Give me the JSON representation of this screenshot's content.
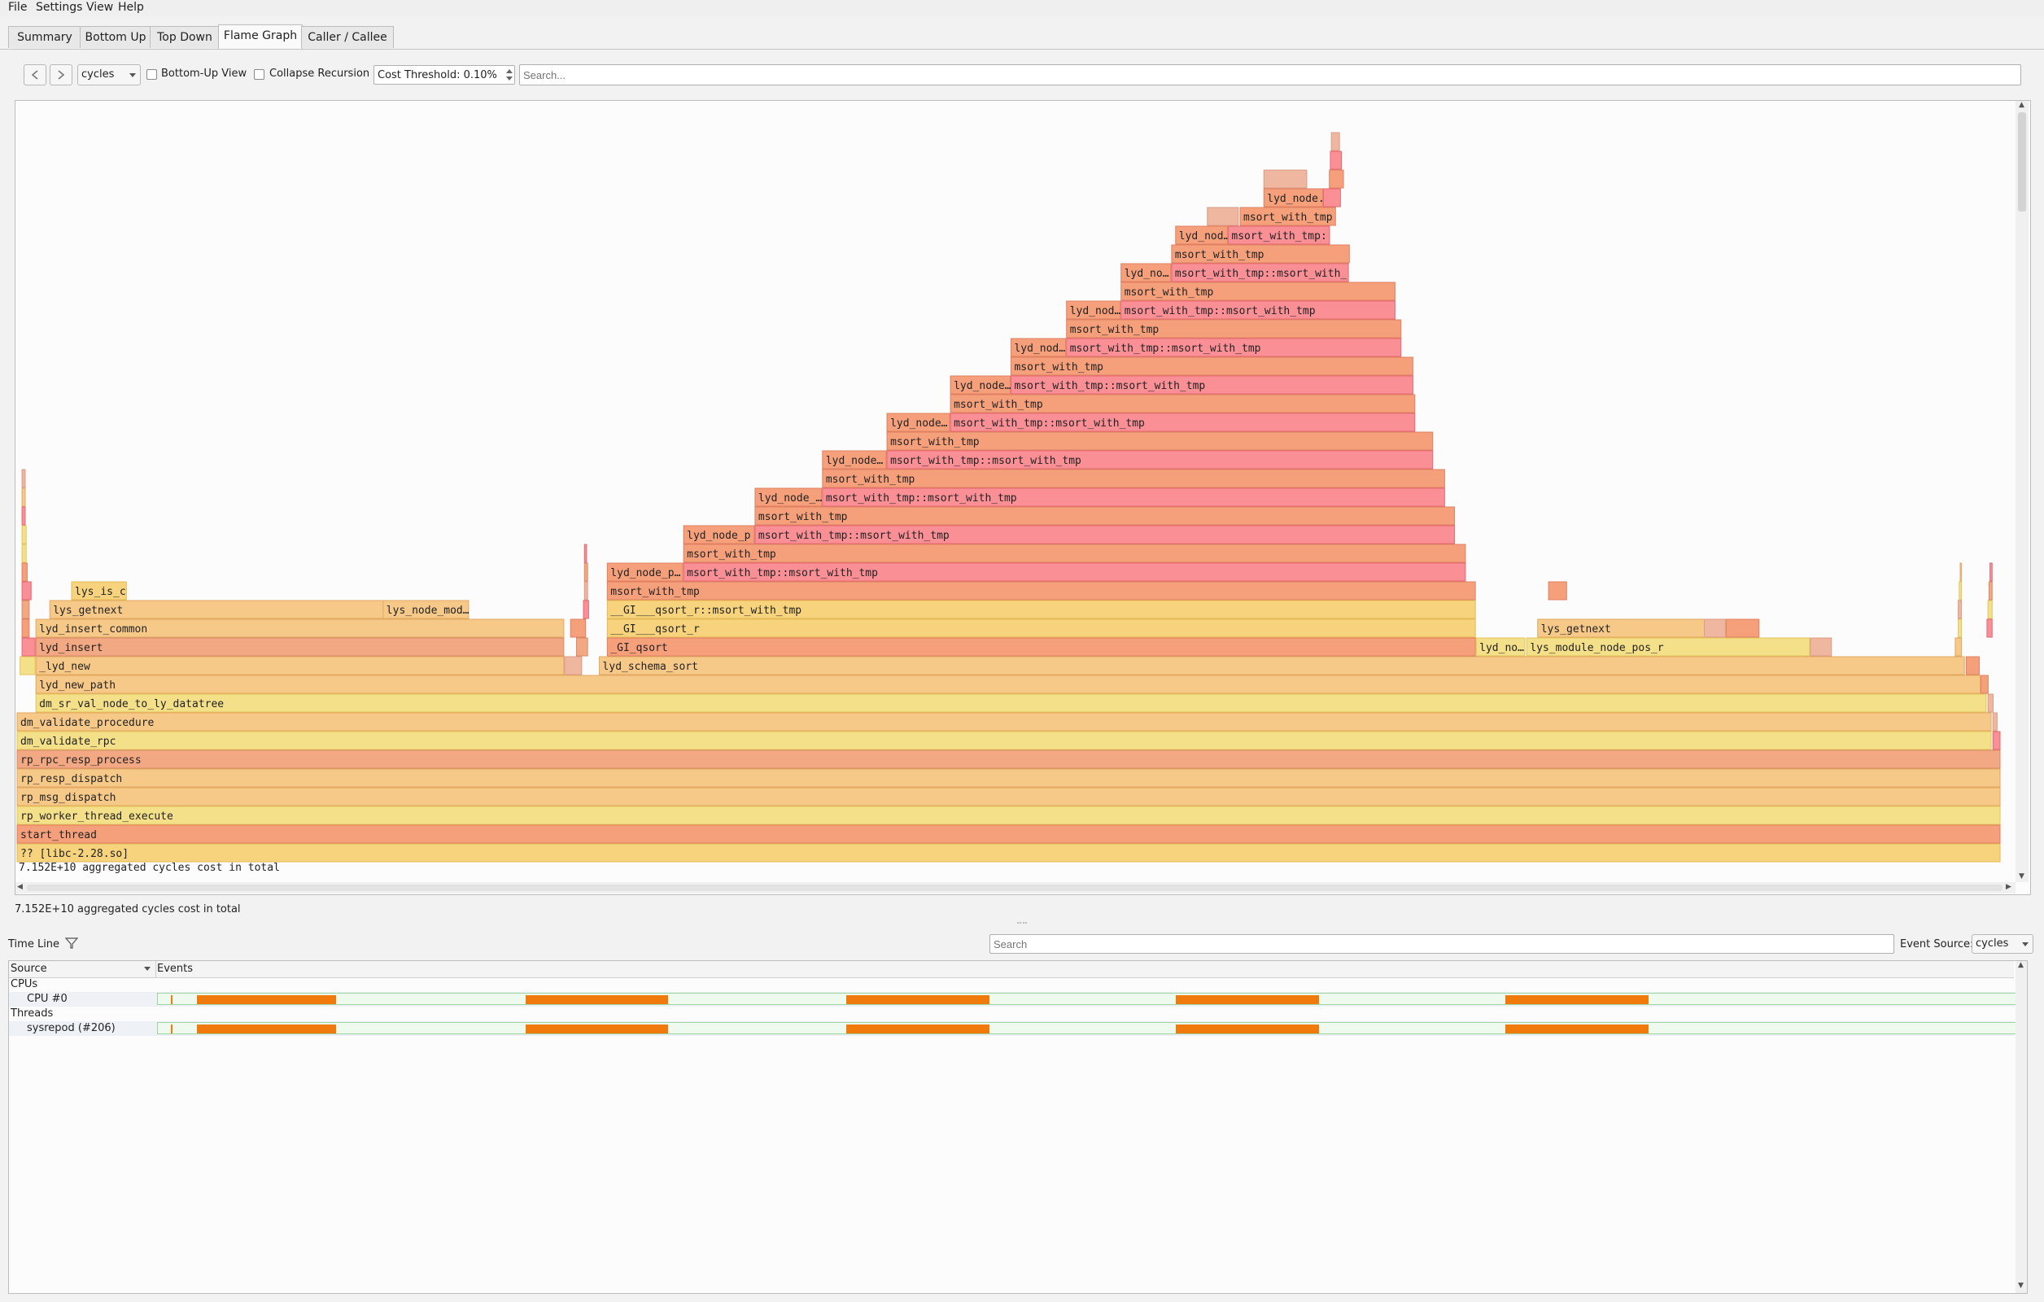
{
  "menu": [
    "File",
    "Settings",
    "View",
    "Help"
  ],
  "tabs": [
    {
      "label": "Summary",
      "active": false
    },
    {
      "label": "Bottom Up",
      "active": false
    },
    {
      "label": "Top Down",
      "active": false
    },
    {
      "label": "Flame Graph",
      "active": true
    },
    {
      "label": "Caller / Callee",
      "active": false
    }
  ],
  "toolbar": {
    "back_icon": "chevron-left-icon",
    "forward_icon": "chevron-right-icon",
    "cost_type": "cycles",
    "bottom_up_label": "Bottom-Up View",
    "bottom_up_checked": false,
    "collapse_label": "Collapse Recursion",
    "collapse_checked": false,
    "threshold_value": "Cost Threshold: 0.10%",
    "search_placeholder": "Search..."
  },
  "flame": {
    "total_in_graph": "7.152E+10 aggregated cycles cost in total",
    "status": "7.152E+10 aggregated cycles cost in total",
    "colors": [
      "#f5e08a",
      "#f7c989",
      "#f2a882",
      "#f5a07b",
      "#fa8f96",
      "#f0b7a0",
      "#f6d37c"
    ],
    "frames": [
      {
        "label": "?? [libc-2.28.so]",
        "depth": 0,
        "start": 0.0,
        "width": 1.0,
        "color": 6
      },
      {
        "label": "start_thread",
        "depth": 1,
        "start": 0.0,
        "width": 1.0,
        "color": 3
      },
      {
        "label": "rp_worker_thread_execute",
        "depth": 2,
        "start": 0.0,
        "width": 1.0,
        "color": 0
      },
      {
        "label": "rp_msg_dispatch",
        "depth": 3,
        "start": 0.0,
        "width": 1.0,
        "color": 1
      },
      {
        "label": "rp_resp_dispatch",
        "depth": 4,
        "start": 0.0,
        "width": 1.0,
        "color": 1
      },
      {
        "label": "rp_rpc_resp_process",
        "depth": 5,
        "start": 0.0,
        "width": 1.0,
        "color": 2
      },
      {
        "label": "dm_validate_rpc",
        "depth": 6,
        "start": 0.0,
        "width": 0.9955,
        "color": 0
      },
      {
        "label": "dm_validate_procedure",
        "depth": 7,
        "start": 0.0,
        "width": 0.9955,
        "color": 1
      },
      {
        "label": "dm_sr_val_node_to_ly_datatree",
        "depth": 8,
        "start": 0.0095,
        "width": 0.9835,
        "color": 0
      },
      {
        "label": "lyd_new_path",
        "depth": 9,
        "start": 0.0095,
        "width": 0.9805,
        "color": 1
      },
      {
        "label": "_lyd_new",
        "depth": 10,
        "start": 0.0095,
        "width": 0.2665,
        "color": 1
      },
      {
        "label": "lyd_schema_sort",
        "depth": 10,
        "start": 0.2935,
        "width": 0.6885,
        "color": 1
      },
      {
        "label": "lyd_insert",
        "depth": 11,
        "start": 0.0095,
        "width": 0.2665,
        "color": 2
      },
      {
        "label": "_GI_qsort",
        "depth": 11,
        "start": 0.2975,
        "width": 0.438,
        "color": 3
      },
      {
        "label": "lyd_no…",
        "depth": 11,
        "start": 0.7355,
        "width": 0.025,
        "color": 0
      },
      {
        "label": "lys_module_node_pos_r",
        "depth": 11,
        "start": 0.761,
        "width": 0.143,
        "color": 0
      },
      {
        "label": "lyd_insert_common",
        "depth": 12,
        "start": 0.0095,
        "width": 0.2665,
        "color": 1
      },
      {
        "label": "__GI___qsort_r",
        "depth": 12,
        "start": 0.2975,
        "width": 0.438,
        "color": 6
      },
      {
        "label": "lys_getnext",
        "depth": 12,
        "start": 0.7665,
        "width": 0.086,
        "color": 1
      },
      {
        "label": "lys_getnext",
        "depth": 13,
        "start": 0.0165,
        "width": 0.1715,
        "color": 1
      },
      {
        "label": "lys_node_mod…",
        "depth": 13,
        "start": 0.1845,
        "width": 0.0435,
        "color": 1
      },
      {
        "label": "__GI___qsort_r::msort_with_tmp",
        "depth": 13,
        "start": 0.2975,
        "width": 0.438,
        "color": 6
      },
      {
        "label": "lys_is_c",
        "depth": 14,
        "start": 0.0275,
        "width": 0.028,
        "color": 6
      },
      {
        "label": "msort_with_tmp",
        "depth": 14,
        "start": 0.2975,
        "width": 0.438,
        "color": 3
      },
      {
        "label": "lyd_node_p…",
        "depth": 15,
        "start": 0.2975,
        "width": 0.0385,
        "color": 3
      },
      {
        "label": "msort_with_tmp::msort_with_tmp",
        "depth": 15,
        "start": 0.336,
        "width": 0.3945,
        "color": 4
      },
      {
        "label": "msort_with_tmp",
        "depth": 16,
        "start": 0.336,
        "width": 0.3945,
        "color": 3
      },
      {
        "label": "lyd_node_p",
        "depth": 17,
        "start": 0.336,
        "width": 0.036,
        "color": 3
      },
      {
        "label": "msort_with_tmp::msort_with_tmp",
        "depth": 17,
        "start": 0.372,
        "width": 0.353,
        "color": 4
      },
      {
        "label": "msort_with_tmp",
        "depth": 18,
        "start": 0.372,
        "width": 0.353,
        "color": 3
      },
      {
        "label": "lyd_node_…",
        "depth": 19,
        "start": 0.372,
        "width": 0.034,
        "color": 3
      },
      {
        "label": "msort_with_tmp::msort_with_tmp",
        "depth": 19,
        "start": 0.406,
        "width": 0.314,
        "color": 4
      },
      {
        "label": "msort_with_tmp",
        "depth": 20,
        "start": 0.406,
        "width": 0.314,
        "color": 3
      },
      {
        "label": "lyd_node…",
        "depth": 21,
        "start": 0.406,
        "width": 0.0325,
        "color": 3
      },
      {
        "label": "msort_with_tmp::msort_with_tmp",
        "depth": 21,
        "start": 0.4385,
        "width": 0.2755,
        "color": 4
      },
      {
        "label": "msort_with_tmp",
        "depth": 22,
        "start": 0.4385,
        "width": 0.2755,
        "color": 3
      },
      {
        "label": "lyd_node…",
        "depth": 23,
        "start": 0.4385,
        "width": 0.032,
        "color": 3
      },
      {
        "label": "msort_with_tmp::msort_with_tmp",
        "depth": 23,
        "start": 0.4705,
        "width": 0.2345,
        "color": 4
      },
      {
        "label": "msort_with_tmp",
        "depth": 24,
        "start": 0.4705,
        "width": 0.2345,
        "color": 3
      },
      {
        "label": "lyd_node…",
        "depth": 25,
        "start": 0.4705,
        "width": 0.0305,
        "color": 3
      },
      {
        "label": "msort_with_tmp::msort_with_tmp",
        "depth": 25,
        "start": 0.501,
        "width": 0.203,
        "color": 4
      },
      {
        "label": "msort_with_tmp",
        "depth": 26,
        "start": 0.501,
        "width": 0.203,
        "color": 3
      },
      {
        "label": "lyd_nod…",
        "depth": 27,
        "start": 0.501,
        "width": 0.028,
        "color": 3
      },
      {
        "label": "msort_with_tmp::msort_with_tmp",
        "depth": 27,
        "start": 0.529,
        "width": 0.169,
        "color": 4
      },
      {
        "label": "msort_with_tmp",
        "depth": 28,
        "start": 0.529,
        "width": 0.169,
        "color": 3
      },
      {
        "label": "lyd_nod…",
        "depth": 29,
        "start": 0.529,
        "width": 0.0275,
        "color": 3
      },
      {
        "label": "msort_with_tmp::msort_with_tmp",
        "depth": 29,
        "start": 0.5565,
        "width": 0.1385,
        "color": 4
      },
      {
        "label": "msort_with_tmp",
        "depth": 30,
        "start": 0.5565,
        "width": 0.1385,
        "color": 3
      },
      {
        "label": "lyd_no…",
        "depth": 31,
        "start": 0.5565,
        "width": 0.0255,
        "color": 3
      },
      {
        "label": "msort_with_tmp::msort_with_",
        "depth": 31,
        "start": 0.582,
        "width": 0.0895,
        "color": 4
      },
      {
        "label": "msort_with_tmp",
        "depth": 32,
        "start": 0.582,
        "width": 0.09,
        "color": 3
      },
      {
        "label": "lyd_nod…",
        "depth": 33,
        "start": 0.584,
        "width": 0.0265,
        "color": 3
      },
      {
        "label": "msort_with_tmp:",
        "depth": 33,
        "start": 0.6105,
        "width": 0.0515,
        "color": 4
      },
      {
        "label": "",
        "depth": 34,
        "start": 0.6,
        "width": 0.016,
        "color": 5
      },
      {
        "label": "msort_with_tmp",
        "depth": 34,
        "start": 0.6165,
        "width": 0.0485,
        "color": 3
      },
      {
        "label": "lyd_node.",
        "depth": 35,
        "start": 0.6285,
        "width": 0.03,
        "color": 3
      },
      {
        "label": "",
        "depth": 35,
        "start": 0.6585,
        "width": 0.009,
        "color": 4
      },
      {
        "label": "",
        "depth": 36,
        "start": 0.6285,
        "width": 0.022,
        "color": 5
      },
      {
        "label": "",
        "depth": 36,
        "start": 0.6615,
        "width": 0.0075,
        "color": 3
      },
      {
        "label": "",
        "depth": 37,
        "start": 0.662,
        "width": 0.006,
        "color": 4
      },
      {
        "label": "",
        "depth": 38,
        "start": 0.6625,
        "width": 0.0045,
        "color": 5
      },
      {
        "label": "",
        "depth": 14,
        "start": 0.772,
        "width": 0.0095,
        "color": 3
      },
      {
        "label": "",
        "depth": 12,
        "start": 0.8505,
        "width": 0.011,
        "color": 5
      },
      {
        "label": "",
        "depth": 12,
        "start": 0.8615,
        "width": 0.017,
        "color": 3
      },
      {
        "label": "",
        "depth": 11,
        "start": 0.904,
        "width": 0.011,
        "color": 5
      },
      {
        "label": "",
        "depth": 10,
        "start": 0.9825,
        "width": 0.007,
        "color": 3
      },
      {
        "label": "",
        "depth": 9,
        "start": 0.99,
        "width": 0.004,
        "color": 3
      },
      {
        "label": "",
        "depth": 8,
        "start": 0.9935,
        "width": 0.003,
        "color": 5
      },
      {
        "label": "",
        "depth": 7,
        "start": 0.996,
        "width": 0.0025,
        "color": 5
      },
      {
        "label": "",
        "depth": 6,
        "start": 0.996,
        "width": 0.004,
        "color": 4
      },
      {
        "label": "",
        "depth": 10,
        "start": 0.0015,
        "width": 0.008,
        "color": 0
      },
      {
        "label": "",
        "depth": 11,
        "start": 0.0025,
        "width": 0.007,
        "color": 4
      },
      {
        "label": "",
        "depth": 12,
        "start": 0.0025,
        "width": 0.004,
        "color": 3
      },
      {
        "label": "",
        "depth": 13,
        "start": 0.0025,
        "width": 0.004,
        "color": 2
      },
      {
        "label": "",
        "depth": 14,
        "start": 0.0025,
        "width": 0.005,
        "color": 4
      },
      {
        "label": "",
        "depth": 15,
        "start": 0.0025,
        "width": 0.003,
        "color": 3
      },
      {
        "label": "",
        "depth": 16,
        "start": 0.0025,
        "width": 0.0025,
        "color": 0
      },
      {
        "label": "",
        "depth": 17,
        "start": 0.0025,
        "width": 0.0025,
        "color": 0
      },
      {
        "label": "",
        "depth": 18,
        "start": 0.0025,
        "width": 0.002,
        "color": 4
      },
      {
        "label": "",
        "depth": 19,
        "start": 0.0025,
        "width": 0.002,
        "color": 1
      },
      {
        "label": "",
        "depth": 20,
        "start": 0.0025,
        "width": 0.002,
        "color": 5
      },
      {
        "label": "",
        "depth": 10,
        "start": 0.276,
        "width": 0.009,
        "color": 5
      },
      {
        "label": "",
        "depth": 11,
        "start": 0.282,
        "width": 0.006,
        "color": 2
      },
      {
        "label": "",
        "depth": 12,
        "start": 0.279,
        "width": 0.008,
        "color": 3
      },
      {
        "label": "",
        "depth": 13,
        "start": 0.2855,
        "width": 0.003,
        "color": 4
      },
      {
        "label": "",
        "depth": 14,
        "start": 0.286,
        "width": 0.002,
        "color": 5
      },
      {
        "label": "",
        "depth": 15,
        "start": 0.286,
        "width": 0.002,
        "color": 2
      },
      {
        "label": "",
        "depth": 16,
        "start": 0.286,
        "width": 0.0015,
        "color": 4
      },
      {
        "label": "",
        "depth": 11,
        "start": 0.977,
        "width": 0.0035,
        "color": 1
      },
      {
        "label": "",
        "depth": 12,
        "start": 0.9785,
        "width": 0.002,
        "color": 0
      },
      {
        "label": "",
        "depth": 13,
        "start": 0.9785,
        "width": 0.002,
        "color": 5
      },
      {
        "label": "",
        "depth": 14,
        "start": 0.979,
        "width": 0.0015,
        "color": 0
      },
      {
        "label": "",
        "depth": 15,
        "start": 0.9795,
        "width": 0.001,
        "color": 1
      },
      {
        "label": "",
        "depth": 12,
        "start": 0.993,
        "width": 0.003,
        "color": 4
      },
      {
        "label": "",
        "depth": 13,
        "start": 0.9935,
        "width": 0.0025,
        "color": 0
      },
      {
        "label": "",
        "depth": 14,
        "start": 0.994,
        "width": 0.002,
        "color": 2
      },
      {
        "label": "",
        "depth": 15,
        "start": 0.9945,
        "width": 0.0015,
        "color": 4
      }
    ]
  },
  "timeline": {
    "title": "Time Line",
    "filter_icon": "filter-icon",
    "search_placeholder": "Search",
    "event_source_label": "Event Source:",
    "event_source_value": "cycles",
    "col_source": "Source",
    "col_events": "Events",
    "group_cpus": "CPUs",
    "cpu_label": "CPU #0",
    "group_threads": "Threads",
    "thread_label": "sysrepod (#206)",
    "event_color": "#f07b0c",
    "busy_intervals": [
      [
        0.021,
        0.0955
      ],
      [
        0.197,
        0.2735
      ],
      [
        0.369,
        0.4455
      ],
      [
        0.5455,
        0.622
      ],
      [
        0.722,
        0.7985
      ]
    ]
  }
}
